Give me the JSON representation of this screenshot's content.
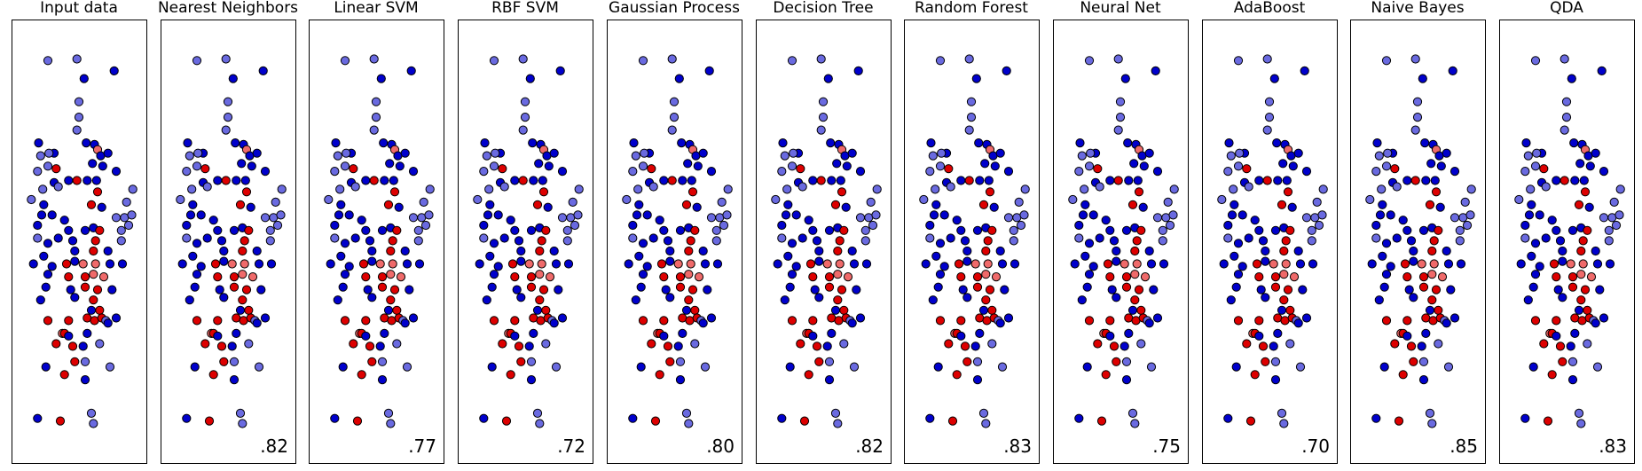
{
  "chart_data": {
    "type": "scatter",
    "xlim": [
      -3.0,
      3.0
    ],
    "ylim": [
      -3.6,
      3.6
    ],
    "grid": false,
    "colors": {
      "class_0_train": "#0000cc",
      "class_1_train": "#dd0000",
      "class_0_test": "#6a6ae0",
      "class_1_test": "#ef6a6a",
      "edge": "#000000"
    },
    "points": [
      [
        -1.5,
        2.35,
        0,
        0
      ],
      [
        -0.1,
        2.38,
        0,
        0
      ],
      [
        1.7,
        2.15,
        0,
        1
      ],
      [
        0.25,
        2.0,
        0,
        1
      ],
      [
        0.0,
        1.55,
        0,
        0
      ],
      [
        0.0,
        1.25,
        0,
        0
      ],
      [
        -0.1,
        1.0,
        0,
        0
      ],
      [
        -1.95,
        0.75,
        0,
        1
      ],
      [
        -1.2,
        0.55,
        0,
        1
      ],
      [
        -1.85,
        0.5,
        0,
        0
      ],
      [
        -1.45,
        0.55,
        0,
        0
      ],
      [
        0.35,
        0.75,
        0,
        1
      ],
      [
        0.75,
        0.72,
        0,
        1
      ],
      [
        0.9,
        0.62,
        1,
        0
      ],
      [
        1.05,
        0.5,
        0,
        1
      ],
      [
        1.4,
        0.55,
        0,
        1
      ],
      [
        -2.0,
        0.2,
        0,
        0
      ],
      [
        -1.5,
        0.3,
        0,
        0
      ],
      [
        -1.1,
        0.25,
        1,
        1
      ],
      [
        0.65,
        0.35,
        0,
        1
      ],
      [
        1.15,
        0.3,
        0,
        1
      ],
      [
        1.8,
        0.2,
        0,
        1
      ],
      [
        -1.2,
        -0.02,
        0,
        1
      ],
      [
        -1.0,
        -0.1,
        0,
        0
      ],
      [
        -0.5,
        0.02,
        0,
        1
      ],
      [
        -0.1,
        0.02,
        1,
        1
      ],
      [
        0.4,
        0.02,
        0,
        1
      ],
      [
        0.85,
        0.02,
        0,
        1
      ],
      [
        -1.75,
        -0.15,
        0,
        0
      ],
      [
        0.9,
        -0.2,
        1,
        1
      ],
      [
        2.6,
        -0.15,
        0,
        0
      ],
      [
        -2.3,
        -0.35,
        0,
        0
      ],
      [
        -1.7,
        -0.45,
        0,
        1
      ],
      [
        0.6,
        -0.45,
        1,
        1
      ],
      [
        1.1,
        -0.5,
        0,
        1
      ],
      [
        2.3,
        -0.4,
        0,
        0
      ],
      [
        -1.8,
        -0.65,
        0,
        1
      ],
      [
        -1.3,
        -0.65,
        0,
        1
      ],
      [
        -0.7,
        -0.75,
        0,
        1
      ],
      [
        1.8,
        -0.7,
        0,
        0
      ],
      [
        2.2,
        -0.7,
        0,
        0
      ],
      [
        2.55,
        -0.65,
        0,
        0
      ],
      [
        -2.0,
        -0.85,
        0,
        1
      ],
      [
        -0.5,
        -0.95,
        0,
        1
      ],
      [
        0.3,
        -0.95,
        0,
        1
      ],
      [
        0.7,
        -0.9,
        0,
        1
      ],
      [
        1.0,
        -0.95,
        1,
        1
      ],
      [
        2.05,
        -0.95,
        0,
        0
      ],
      [
        2.4,
        -0.85,
        0,
        0
      ],
      [
        -2.0,
        -1.1,
        0,
        0
      ],
      [
        -1.5,
        -1.2,
        0,
        1
      ],
      [
        -1.0,
        -1.1,
        0,
        1
      ],
      [
        -0.3,
        -1.15,
        0,
        1
      ],
      [
        0.8,
        -1.15,
        1,
        1
      ],
      [
        2.05,
        -1.15,
        0,
        0
      ],
      [
        -1.7,
        -1.45,
        0,
        1
      ],
      [
        -0.2,
        -1.35,
        0,
        1
      ],
      [
        0.7,
        -1.35,
        1,
        1
      ],
      [
        1.4,
        -1.35,
        0,
        1
      ],
      [
        -2.2,
        -1.6,
        0,
        1
      ],
      [
        -1.3,
        -1.65,
        0,
        1
      ],
      [
        -0.6,
        -1.6,
        1,
        1
      ],
      [
        -0.2,
        -1.55,
        0,
        1
      ],
      [
        0.2,
        -1.6,
        1,
        0
      ],
      [
        0.8,
        -1.6,
        1,
        0
      ],
      [
        1.5,
        -1.6,
        0,
        1
      ],
      [
        2.1,
        -1.6,
        0,
        1
      ],
      [
        -1.5,
        -1.8,
        0,
        1
      ],
      [
        -0.5,
        -1.85,
        1,
        1
      ],
      [
        0.3,
        -1.85,
        1,
        1
      ],
      [
        0.7,
        -1.8,
        1,
        0
      ],
      [
        1.2,
        -1.85,
        1,
        0
      ],
      [
        -1.6,
        -2.05,
        0,
        1
      ],
      [
        -0.4,
        -2.1,
        0,
        1
      ],
      [
        0.3,
        -2.05,
        1,
        1
      ],
      [
        0.9,
        -2.1,
        1,
        1
      ],
      [
        1.6,
        -2.1,
        0,
        1
      ],
      [
        -1.85,
        -2.3,
        0,
        1
      ],
      [
        -0.2,
        -2.25,
        0,
        1
      ],
      [
        0.7,
        -2.3,
        1,
        1
      ],
      [
        0.6,
        -2.5,
        0,
        1
      ],
      [
        1.0,
        -2.5,
        1,
        1
      ],
      [
        -1.5,
        -2.7,
        1,
        1
      ],
      [
        -0.5,
        -2.7,
        1,
        1
      ],
      [
        0.4,
        -2.65,
        1,
        1
      ],
      [
        0.75,
        -2.7,
        1,
        1
      ],
      [
        1.1,
        -2.65,
        1,
        1
      ],
      [
        1.3,
        -2.7,
        0,
        0
      ],
      [
        1.4,
        -2.75,
        0,
        1
      ],
      [
        1.8,
        -2.65,
        0,
        1
      ],
      [
        -0.8,
        -2.95,
        1,
        0
      ],
      [
        -0.7,
        -2.95,
        1,
        1
      ],
      [
        -0.5,
        -3.0,
        0,
        1
      ],
      [
        0.4,
        -2.95,
        0,
        1
      ],
      [
        -1.1,
        -3.15,
        1,
        1
      ],
      [
        -0.3,
        -3.2,
        1,
        1
      ],
      [
        0.2,
        -3.2,
        0,
        1
      ],
      [
        1.0,
        -3.15,
        0,
        0
      ],
      [
        -0.2,
        -3.5,
        1,
        1
      ],
      [
        0.3,
        -3.5,
        0,
        0
      ],
      [
        -1.6,
        -3.6,
        0,
        1
      ],
      [
        1.5,
        -3.6,
        0,
        0
      ],
      [
        -0.7,
        -3.75,
        1,
        1
      ],
      [
        0.3,
        -3.85,
        0,
        1
      ],
      [
        -2.0,
        -4.6,
        0,
        1
      ],
      [
        -0.9,
        -4.65,
        1,
        1
      ],
      [
        0.6,
        -4.5,
        0,
        0
      ],
      [
        0.7,
        -4.7,
        0,
        0
      ]
    ],
    "panels": [
      {
        "title": "Input data",
        "score": ""
      },
      {
        "title": "Nearest Neighbors",
        "score": ".82"
      },
      {
        "title": "Linear SVM",
        "score": ".77"
      },
      {
        "title": "RBF SVM",
        "score": ".72"
      },
      {
        "title": "Gaussian Process",
        "score": ".80"
      },
      {
        "title": "Decision Tree",
        "score": ".82"
      },
      {
        "title": "Random Forest",
        "score": ".83"
      },
      {
        "title": "Neural Net",
        "score": ".75"
      },
      {
        "title": "AdaBoost",
        "score": ".70"
      },
      {
        "title": "Naive Bayes",
        "score": ".85"
      },
      {
        "title": "QDA",
        "score": ".83"
      }
    ]
  }
}
